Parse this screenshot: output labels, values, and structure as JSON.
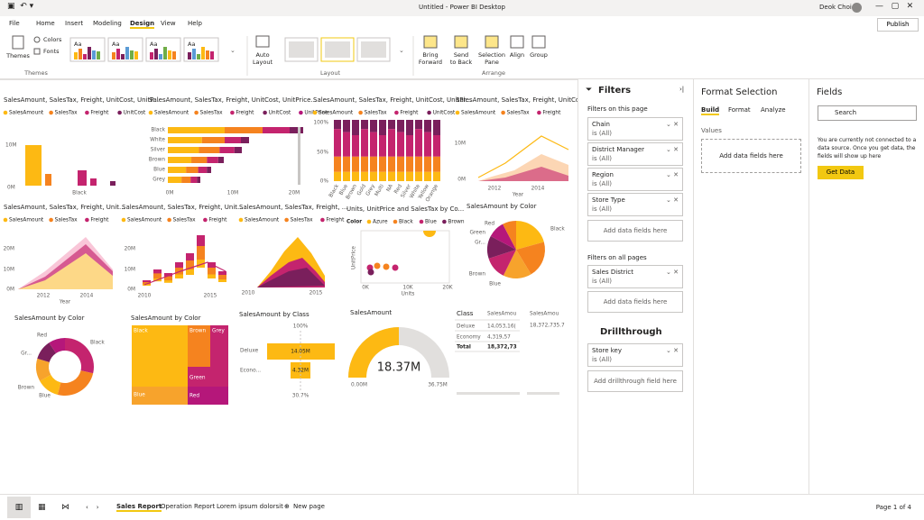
{
  "titlebar": {
    "title": "Untitled - Power BI Desktop",
    "user": "Deok Choi"
  },
  "tabs": [
    "File",
    "Home",
    "Insert",
    "Modeling",
    "Design",
    "View",
    "Help"
  ],
  "publish": "Publish",
  "ribbon": {
    "themes": "Themes",
    "colors": "Colors",
    "fonts": "Fonts",
    "theme_samples": [
      "Aa",
      "Aa",
      "Aa",
      "Aa"
    ],
    "group_themes": "Themes",
    "auto_layout": [
      "Auto",
      "Layout"
    ],
    "group_layout": "Layout",
    "arrange_buttons": [
      [
        "Bring",
        "Forward"
      ],
      [
        "Send",
        "to Back"
      ],
      [
        "Selection",
        "Pane"
      ],
      [
        "Align"
      ],
      [
        "Group"
      ]
    ],
    "group_arrange": "Arrange"
  },
  "canvas": {
    "visuals": [
      {
        "title": "SalesAmount, SalesTax, Freight, UnitCost, UnitP...",
        "legend": [
          "SalesAmount",
          "SalesTax",
          "Freight",
          "UnitCost"
        ],
        "labels": [
          "10M",
          "0M",
          "Black"
        ]
      },
      {
        "title": "SalesAmount, SalesTax, Freight, UnitCost, UnitPrice...",
        "legend": [
          "SalesAmount",
          "SalesTax",
          "Freight",
          "UnitCost",
          "UnitPrice"
        ],
        "labels": [
          "Black",
          "White",
          "Silver",
          "Brown",
          "Blue",
          "Grey",
          "0M",
          "10M",
          "20M"
        ]
      },
      {
        "title": "SalesAmount, SalesTax, Freight, UnitCost, UnitPr...",
        "legend": [
          "SalesAmount",
          "SalesTax",
          "Freight",
          "UnitCost"
        ],
        "labels": [
          "100%",
          "50%",
          "0%",
          "Black",
          "Blue",
          "Brown",
          "Gold",
          "Grey",
          "Multi",
          "NA",
          "Red",
          "Silver",
          "White",
          "Yellow",
          "Orange"
        ]
      },
      {
        "title": "SalesAmount, SalesTax, Freight, UnitCost, ...",
        "legend": [
          "SalesAmount",
          "SalesTax",
          "Freight"
        ],
        "labels": [
          "10M",
          "0M",
          "2012",
          "2014",
          "Year"
        ]
      },
      {
        "title": "SalesAmount, SalesTax, Freight, Unit...",
        "legend": [
          "SalesAmount",
          "SalesTax",
          "Freight"
        ],
        "labels": [
          "20M",
          "10M",
          "0M",
          "2012",
          "2014",
          "Year"
        ]
      },
      {
        "title": "SalesAmount, SalesTax, Freight, Unit...",
        "legend": [
          "SalesAmount",
          "SalesTax",
          "Freight"
        ],
        "labels": [
          "20M",
          "10M",
          "0M",
          "2010",
          "2015"
        ]
      },
      {
        "title": "SalesAmount, SalesTax, Freight, ...",
        "legend": [
          "SalesAmount",
          "SalesTax",
          "Freight"
        ],
        "labels": [
          "2010",
          "2015"
        ]
      },
      {
        "title": "Units, UnitPrice and SalesTax by Co...",
        "legend": [
          "Color",
          "Azure",
          "Black",
          "Blue",
          "Brown"
        ],
        "labels": [
          "0K",
          "10K",
          "20K",
          "Units",
          "UnitPrice"
        ]
      },
      {
        "title": "SalesAmount by Color",
        "labels": [
          "Red",
          "Black",
          "Green",
          "Gr...",
          "Brown",
          "Blue"
        ]
      },
      {
        "title": "SalesAmount by Color",
        "labels": [
          "Red",
          "Black",
          "Gr...",
          "Brown",
          "Blue"
        ]
      },
      {
        "title": "SalesAmount by Color",
        "labels": [
          "Black",
          "Brown",
          "Grey",
          "Green",
          "Blue",
          "Red"
        ]
      },
      {
        "title": "SalesAmount by Class",
        "labels": [
          "100%",
          "Deluxe",
          "14.05M",
          "Econo...",
          "4.32M",
          "30.7%"
        ]
      },
      {
        "title": "SalesAmount",
        "labels": [
          "18.37M",
          "0.00M",
          "36.75M"
        ]
      },
      {
        "title": "Class",
        "labels": [
          "SalesAmou",
          "Deluxe",
          "14,053,16(",
          "Economy",
          "4,319,57",
          "Total",
          "18,372,73",
          "SalesAmou",
          "18,372,735.7"
        ]
      }
    ]
  },
  "filters": {
    "title": "Filters",
    "on_this_page": "Filters on this page",
    "page_cards": [
      {
        "name": "Chain",
        "state": "is (All)"
      },
      {
        "name": "District Manager",
        "state": "is (All)"
      },
      {
        "name": "Region",
        "state": "is (All)"
      },
      {
        "name": "Store Type",
        "state": "is (All)"
      }
    ],
    "add_page": "Add data fields here",
    "on_all_pages": "Filters on all pages",
    "all_cards": [
      {
        "name": "Sales District",
        "state": "is (All)"
      }
    ],
    "add_all": "Add data fields here",
    "drillthrough": "Drillthrough",
    "drill_cards": [
      {
        "name": "Store key",
        "state": "is (All)"
      }
    ],
    "add_drill": "Add drillthrough field here"
  },
  "format": {
    "title": "Format Selection",
    "tabs": [
      "Build",
      "Format",
      "Analyze"
    ],
    "values": "Values",
    "add": "Add data fields here"
  },
  "fields": {
    "title": "Fields",
    "search": "Search",
    "message": [
      "You are currently not connected to a",
      "data source. Once you get data, the",
      "fields will show up here"
    ],
    "get_data": "Get Data"
  },
  "footer": {
    "pages": [
      "Sales Report",
      "Operation Report",
      "Lorem ipsum dolorsit"
    ],
    "new_page": "New page",
    "page_count": "Page 1 of 4"
  }
}
